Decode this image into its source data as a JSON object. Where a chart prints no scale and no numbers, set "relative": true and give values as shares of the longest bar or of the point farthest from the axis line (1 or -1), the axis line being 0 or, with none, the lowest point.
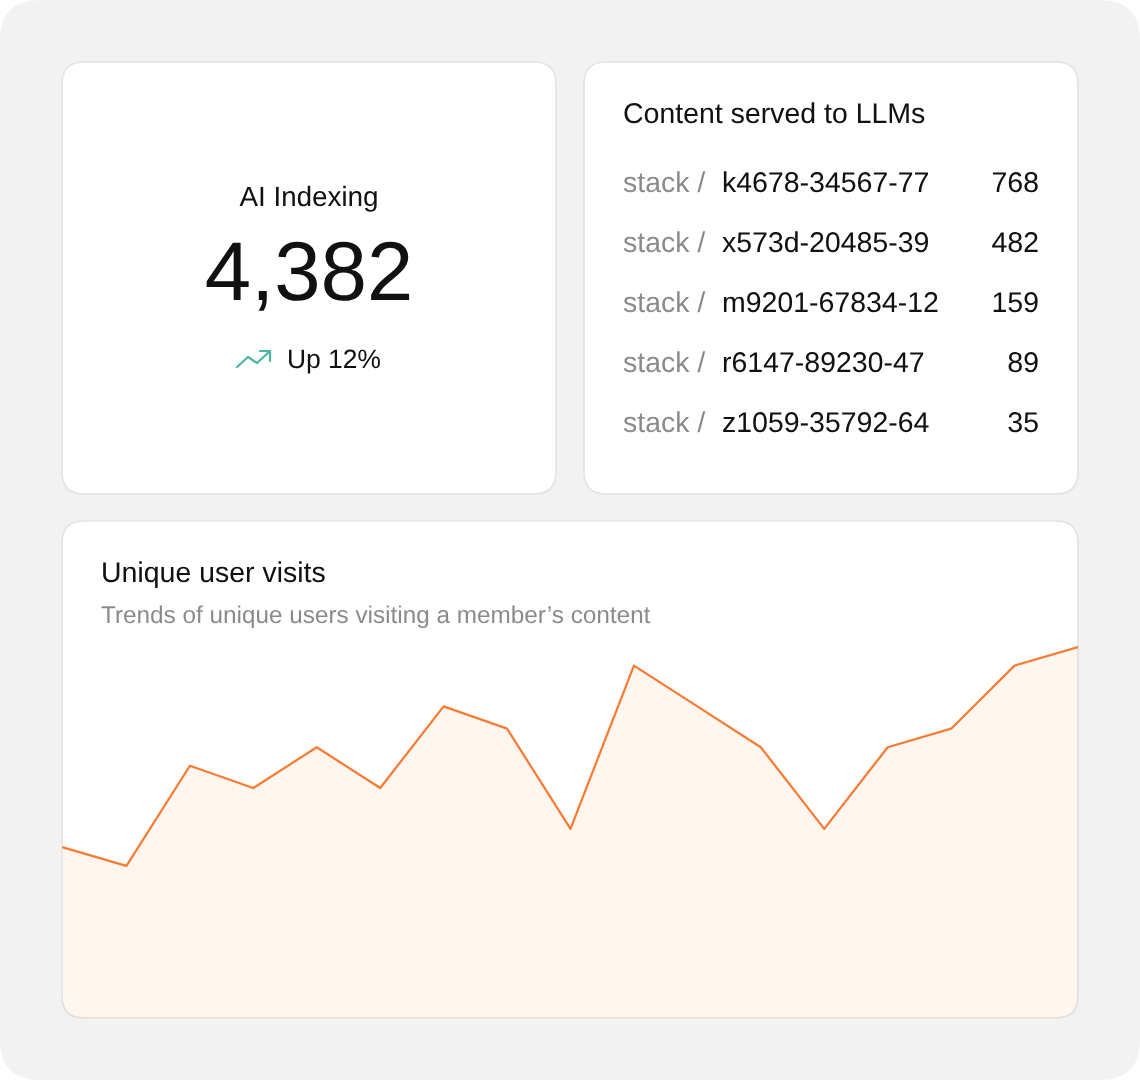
{
  "chart_data": [
    {
      "type": "other",
      "title": "AI Indexing",
      "annotations": [
        "4,382",
        "Up 12%"
      ]
    },
    {
      "type": "other",
      "title": "Content served to LLMs",
      "categories": [
        "stack / k4678-34567-77",
        "stack / x573d-20485-39",
        "stack / m9201-67834-12",
        "stack / r6147-89230-47",
        "stack / z1059-35792-64"
      ],
      "values": [
        768,
        482,
        159,
        89,
        35
      ],
      "data_labels": true
    },
    {
      "type": "area",
      "title": "Unique user visits",
      "subtitle": "Trends of unique users visiting a member’s content",
      "categories": [
        null,
        null,
        null,
        null,
        null,
        null,
        null,
        null,
        null,
        null,
        null,
        null,
        null,
        null,
        null,
        null,
        null
      ],
      "values": [
        0.46,
        0.41,
        0.68,
        0.62,
        0.73,
        0.62,
        0.84,
        0.78,
        0.51,
        0.95,
        0.84,
        0.73,
        0.51,
        0.73,
        0.78,
        0.95,
        1
      ],
      "color": "#f97a31",
      "relative": true
    }
  ]
}
